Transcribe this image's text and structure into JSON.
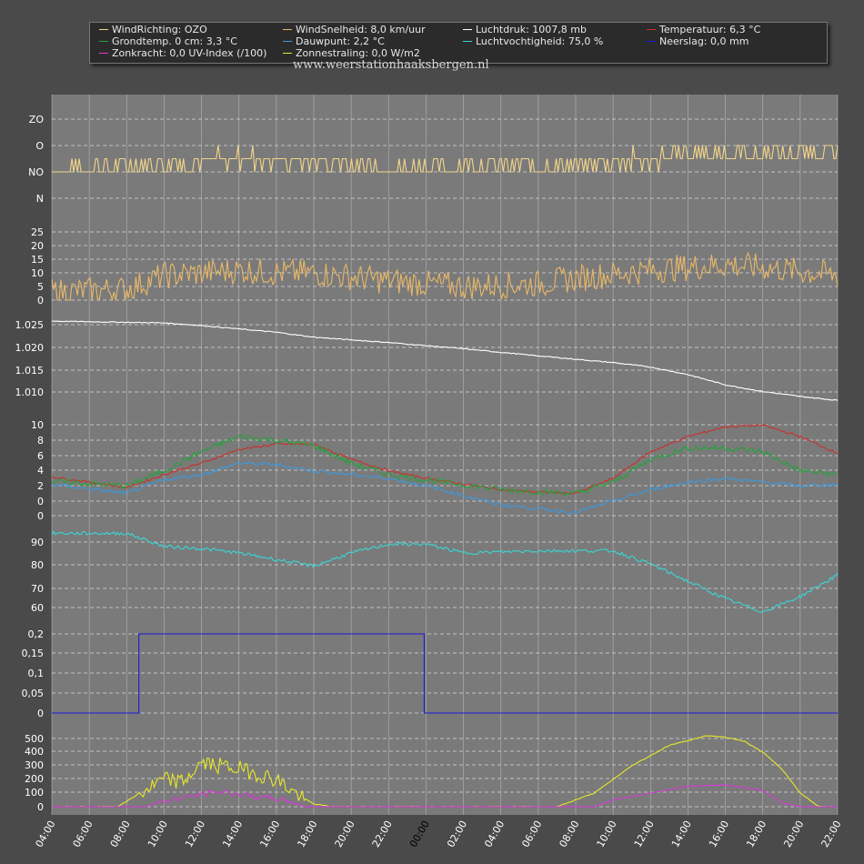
{
  "legend": {
    "items": [
      {
        "key": "windrichting",
        "label": "WindRichting: OZO",
        "color": "#f2d58a"
      },
      {
        "key": "windsnelheid",
        "label": "WindSnelheid: 8,0 km/uur",
        "color": "#e8b868"
      },
      {
        "key": "luchtdruk",
        "label": "Luchtdruk: 1007,8 mb",
        "color": "#ffffff"
      },
      {
        "key": "temperatuur",
        "label": "Temperatuur: 6,3 °C",
        "color": "#c8302a"
      },
      {
        "key": "grondtemp",
        "label": "Grondtemp. 0 cm: 3,3 °C",
        "color": "#22a43a"
      },
      {
        "key": "dauwpunt",
        "label": "Dauwpunt: 2,2 °C",
        "color": "#3a9ae0"
      },
      {
        "key": "luchtvochtigheid",
        "label": "Luchtvochtigheid: 75,0 %",
        "color": "#3ad6d6"
      },
      {
        "key": "neerslag",
        "label": "Neerslag: 0,0 mm",
        "color": "#1a1ad8"
      },
      {
        "key": "zonkracht",
        "label": "Zonkracht: 0,0 UV-Index (/100)",
        "color": "#d838d8"
      },
      {
        "key": "zonnestraling",
        "label": "Zonnestraling: 0,0 W/m2",
        "color": "#e8e828"
      }
    ]
  },
  "watermark": "www.weerstationhaaksbergen.nl",
  "chart_data": {
    "type": "line",
    "x_axis": {
      "start_hour": 4,
      "end_hour": 46,
      "tick_labels": [
        "04:00",
        "06:00",
        "08:00",
        "10:00",
        "12:00",
        "14:00",
        "16:00",
        "18:00",
        "20:00",
        "22:00",
        "00:00",
        "02:00",
        "04:00",
        "06:00",
        "08:00",
        "10:00",
        "12:00",
        "14:00",
        "16:00",
        "18:00",
        "20:00",
        "22:00"
      ],
      "highlight_label": "00:00"
    },
    "panels": [
      {
        "id": "wind-direction",
        "y_labels": [
          "ZO",
          "O",
          "NO",
          "N"
        ],
        "series": [
          {
            "name": "WindRichting",
            "color": "#f2d58a",
            "anchors": [
              [
                4,
                1.1
              ],
              [
                10,
                1.3
              ],
              [
                14,
                1.5
              ],
              [
                18,
                1.4
              ],
              [
                22,
                1.1
              ],
              [
                26,
                1.2
              ],
              [
                32,
                1.3
              ],
              [
                36,
                1.5
              ],
              [
                40,
                1.7
              ],
              [
                46,
                1.7
              ]
            ],
            "noise": 0.35
          }
        ]
      },
      {
        "id": "wind-speed",
        "y_labels": [
          "25",
          "20",
          "15",
          "10",
          "5",
          "0"
        ],
        "series": [
          {
            "name": "WindSnelheid",
            "color": "#e8b868",
            "anchors": [
              [
                4,
                3
              ],
              [
                8,
                4
              ],
              [
                10,
                9
              ],
              [
                14,
                11
              ],
              [
                16,
                10
              ],
              [
                18,
                10
              ],
              [
                22,
                7
              ],
              [
                26,
                5
              ],
              [
                30,
                6
              ],
              [
                32,
                8
              ],
              [
                36,
                11
              ],
              [
                40,
                13
              ],
              [
                42,
                12
              ],
              [
                46,
                9
              ]
            ],
            "noise": 5
          }
        ]
      },
      {
        "id": "pressure",
        "y_labels": [
          "1.025",
          "1.020",
          "1.015",
          "1.010"
        ],
        "series": [
          {
            "name": "Luchtdruk",
            "color": "#ffffff",
            "anchors": [
              [
                4,
                1025.8
              ],
              [
                10,
                1025.4
              ],
              [
                12,
                1024.8
              ],
              [
                16,
                1023.3
              ],
              [
                18,
                1022.2
              ],
              [
                22,
                1021.0
              ],
              [
                26,
                1019.6
              ],
              [
                30,
                1018.0
              ],
              [
                34,
                1016.5
              ],
              [
                36,
                1015.5
              ],
              [
                38,
                1013.8
              ],
              [
                40,
                1011.5
              ],
              [
                42,
                1010.0
              ],
              [
                44,
                1008.9
              ],
              [
                46,
                1008.0
              ]
            ],
            "noise": 0.1
          }
        ]
      },
      {
        "id": "temperature",
        "y_labels": [
          "10",
          "8",
          "6",
          "4",
          "2",
          "0"
        ],
        "series": [
          {
            "name": "Temperatuur",
            "color": "#c8302a",
            "anchors": [
              [
                4,
                3.2
              ],
              [
                8,
                1.8
              ],
              [
                10,
                3.5
              ],
              [
                12,
                5
              ],
              [
                14,
                6.8
              ],
              [
                16,
                7.5
              ],
              [
                18,
                7.5
              ],
              [
                20,
                5.5
              ],
              [
                22,
                4
              ],
              [
                24,
                3
              ],
              [
                28,
                1.5
              ],
              [
                30,
                1.2
              ],
              [
                32,
                1
              ],
              [
                34,
                3
              ],
              [
                36,
                6.5
              ],
              [
                38,
                8.5
              ],
              [
                40,
                9.8
              ],
              [
                42,
                10
              ],
              [
                44,
                8.5
              ],
              [
                46,
                6.3
              ]
            ],
            "noise": 0.15
          },
          {
            "name": "Grondtemp",
            "color": "#22a43a",
            "anchors": [
              [
                4,
                2.6
              ],
              [
                8,
                2
              ],
              [
                10,
                4
              ],
              [
                12,
                6.5
              ],
              [
                14,
                8.5
              ],
              [
                16,
                8
              ],
              [
                18,
                7.3
              ],
              [
                20,
                5
              ],
              [
                22,
                3.5
              ],
              [
                24,
                2.8
              ],
              [
                28,
                1.5
              ],
              [
                32,
                1
              ],
              [
                34,
                2.5
              ],
              [
                36,
                5.5
              ],
              [
                38,
                7
              ],
              [
                40,
                7
              ],
              [
                42,
                6.5
              ],
              [
                44,
                4
              ],
              [
                46,
                3.5
              ]
            ],
            "noise": 0.4
          },
          {
            "name": "Dauwpunt",
            "color": "#3a9ae0",
            "anchors": [
              [
                4,
                2.2
              ],
              [
                8,
                1
              ],
              [
                10,
                2.8
              ],
              [
                12,
                3.5
              ],
              [
                14,
                5
              ],
              [
                16,
                4.8
              ],
              [
                18,
                4
              ],
              [
                20,
                3.5
              ],
              [
                22,
                3
              ],
              [
                24,
                2
              ],
              [
                28,
                -0.5
              ],
              [
                30,
                -1
              ],
              [
                32,
                -1.5
              ],
              [
                34,
                0
              ],
              [
                36,
                1.5
              ],
              [
                38,
                2.5
              ],
              [
                40,
                3
              ],
              [
                42,
                2.5
              ],
              [
                44,
                2
              ],
              [
                46,
                2.2
              ]
            ],
            "noise": 0.25
          }
        ]
      },
      {
        "id": "humidity",
        "y_labels": [
          "90",
          "80",
          "70",
          "60"
        ],
        "series": [
          {
            "name": "Luchtvochtigheid",
            "color": "#3ad6d6",
            "anchors": [
              [
                4,
                94
              ],
              [
                8,
                94
              ],
              [
                10,
                88
              ],
              [
                12,
                87
              ],
              [
                14,
                85
              ],
              [
                16,
                82
              ],
              [
                18,
                79
              ],
              [
                20,
                85
              ],
              [
                22,
                89
              ],
              [
                24,
                89
              ],
              [
                26,
                85
              ],
              [
                30,
                86
              ],
              [
                34,
                86
              ],
              [
                36,
                80
              ],
              [
                38,
                72
              ],
              [
                40,
                64
              ],
              [
                42,
                58
              ],
              [
                44,
                65
              ],
              [
                46,
                75
              ]
            ],
            "noise": 0.8
          }
        ]
      },
      {
        "id": "precipitation",
        "y_labels": [
          "0,2",
          "0,15",
          "0,1",
          "0,05",
          "0"
        ],
        "series": [
          {
            "name": "Neerslag",
            "color": "#1a1ad8",
            "steps": [
              [
                4,
                0
              ],
              [
                8.65,
                0
              ],
              [
                8.65,
                0.2
              ],
              [
                23.9,
                0.2
              ],
              [
                23.9,
                0
              ],
              [
                46,
                0
              ]
            ]
          }
        ]
      },
      {
        "id": "solar",
        "y_labels": [
          "500",
          "400",
          "300",
          "200",
          "100",
          "0"
        ],
        "series": [
          {
            "name": "Zonnestraling",
            "color": "#e8e828",
            "anchors": [
              [
                4,
                0
              ],
              [
                7.5,
                0
              ],
              [
                9,
                120
              ],
              [
                10,
                200
              ],
              [
                11,
                180
              ],
              [
                12,
                320
              ],
              [
                13,
                300
              ],
              [
                14,
                280
              ],
              [
                15,
                240
              ],
              [
                16,
                200
              ],
              [
                17,
                100
              ],
              [
                18,
                20
              ],
              [
                19,
                0
              ],
              [
                31,
                0
              ],
              [
                33,
                100
              ],
              [
                35,
                300
              ],
              [
                37,
                450
              ],
              [
                39,
                520
              ],
              [
                40,
                510
              ],
              [
                41,
                480
              ],
              [
                42,
                400
              ],
              [
                43,
                280
              ],
              [
                44,
                100
              ],
              [
                45,
                0
              ],
              [
                46,
                0
              ]
            ],
            "noise": 60,
            "noise_range": [
              8.5,
              17.5
            ]
          },
          {
            "name": "Zonkracht",
            "color": "#d838d8",
            "anchors": [
              [
                4,
                0
              ],
              [
                9,
                0
              ],
              [
                10,
                40
              ],
              [
                12,
                90
              ],
              [
                13,
                110
              ],
              [
                14,
                90
              ],
              [
                15,
                70
              ],
              [
                16,
                60
              ],
              [
                17,
                30
              ],
              [
                17.5,
                0
              ],
              [
                33,
                0
              ],
              [
                34,
                50
              ],
              [
                36,
                100
              ],
              [
                38,
                150
              ],
              [
                40,
                160
              ],
              [
                42,
                120
              ],
              [
                43,
                30
              ],
              [
                44,
                0
              ],
              [
                46,
                0
              ]
            ],
            "noise": 20,
            "noise_range": [
              9.5,
              17
            ]
          }
        ]
      }
    ]
  }
}
